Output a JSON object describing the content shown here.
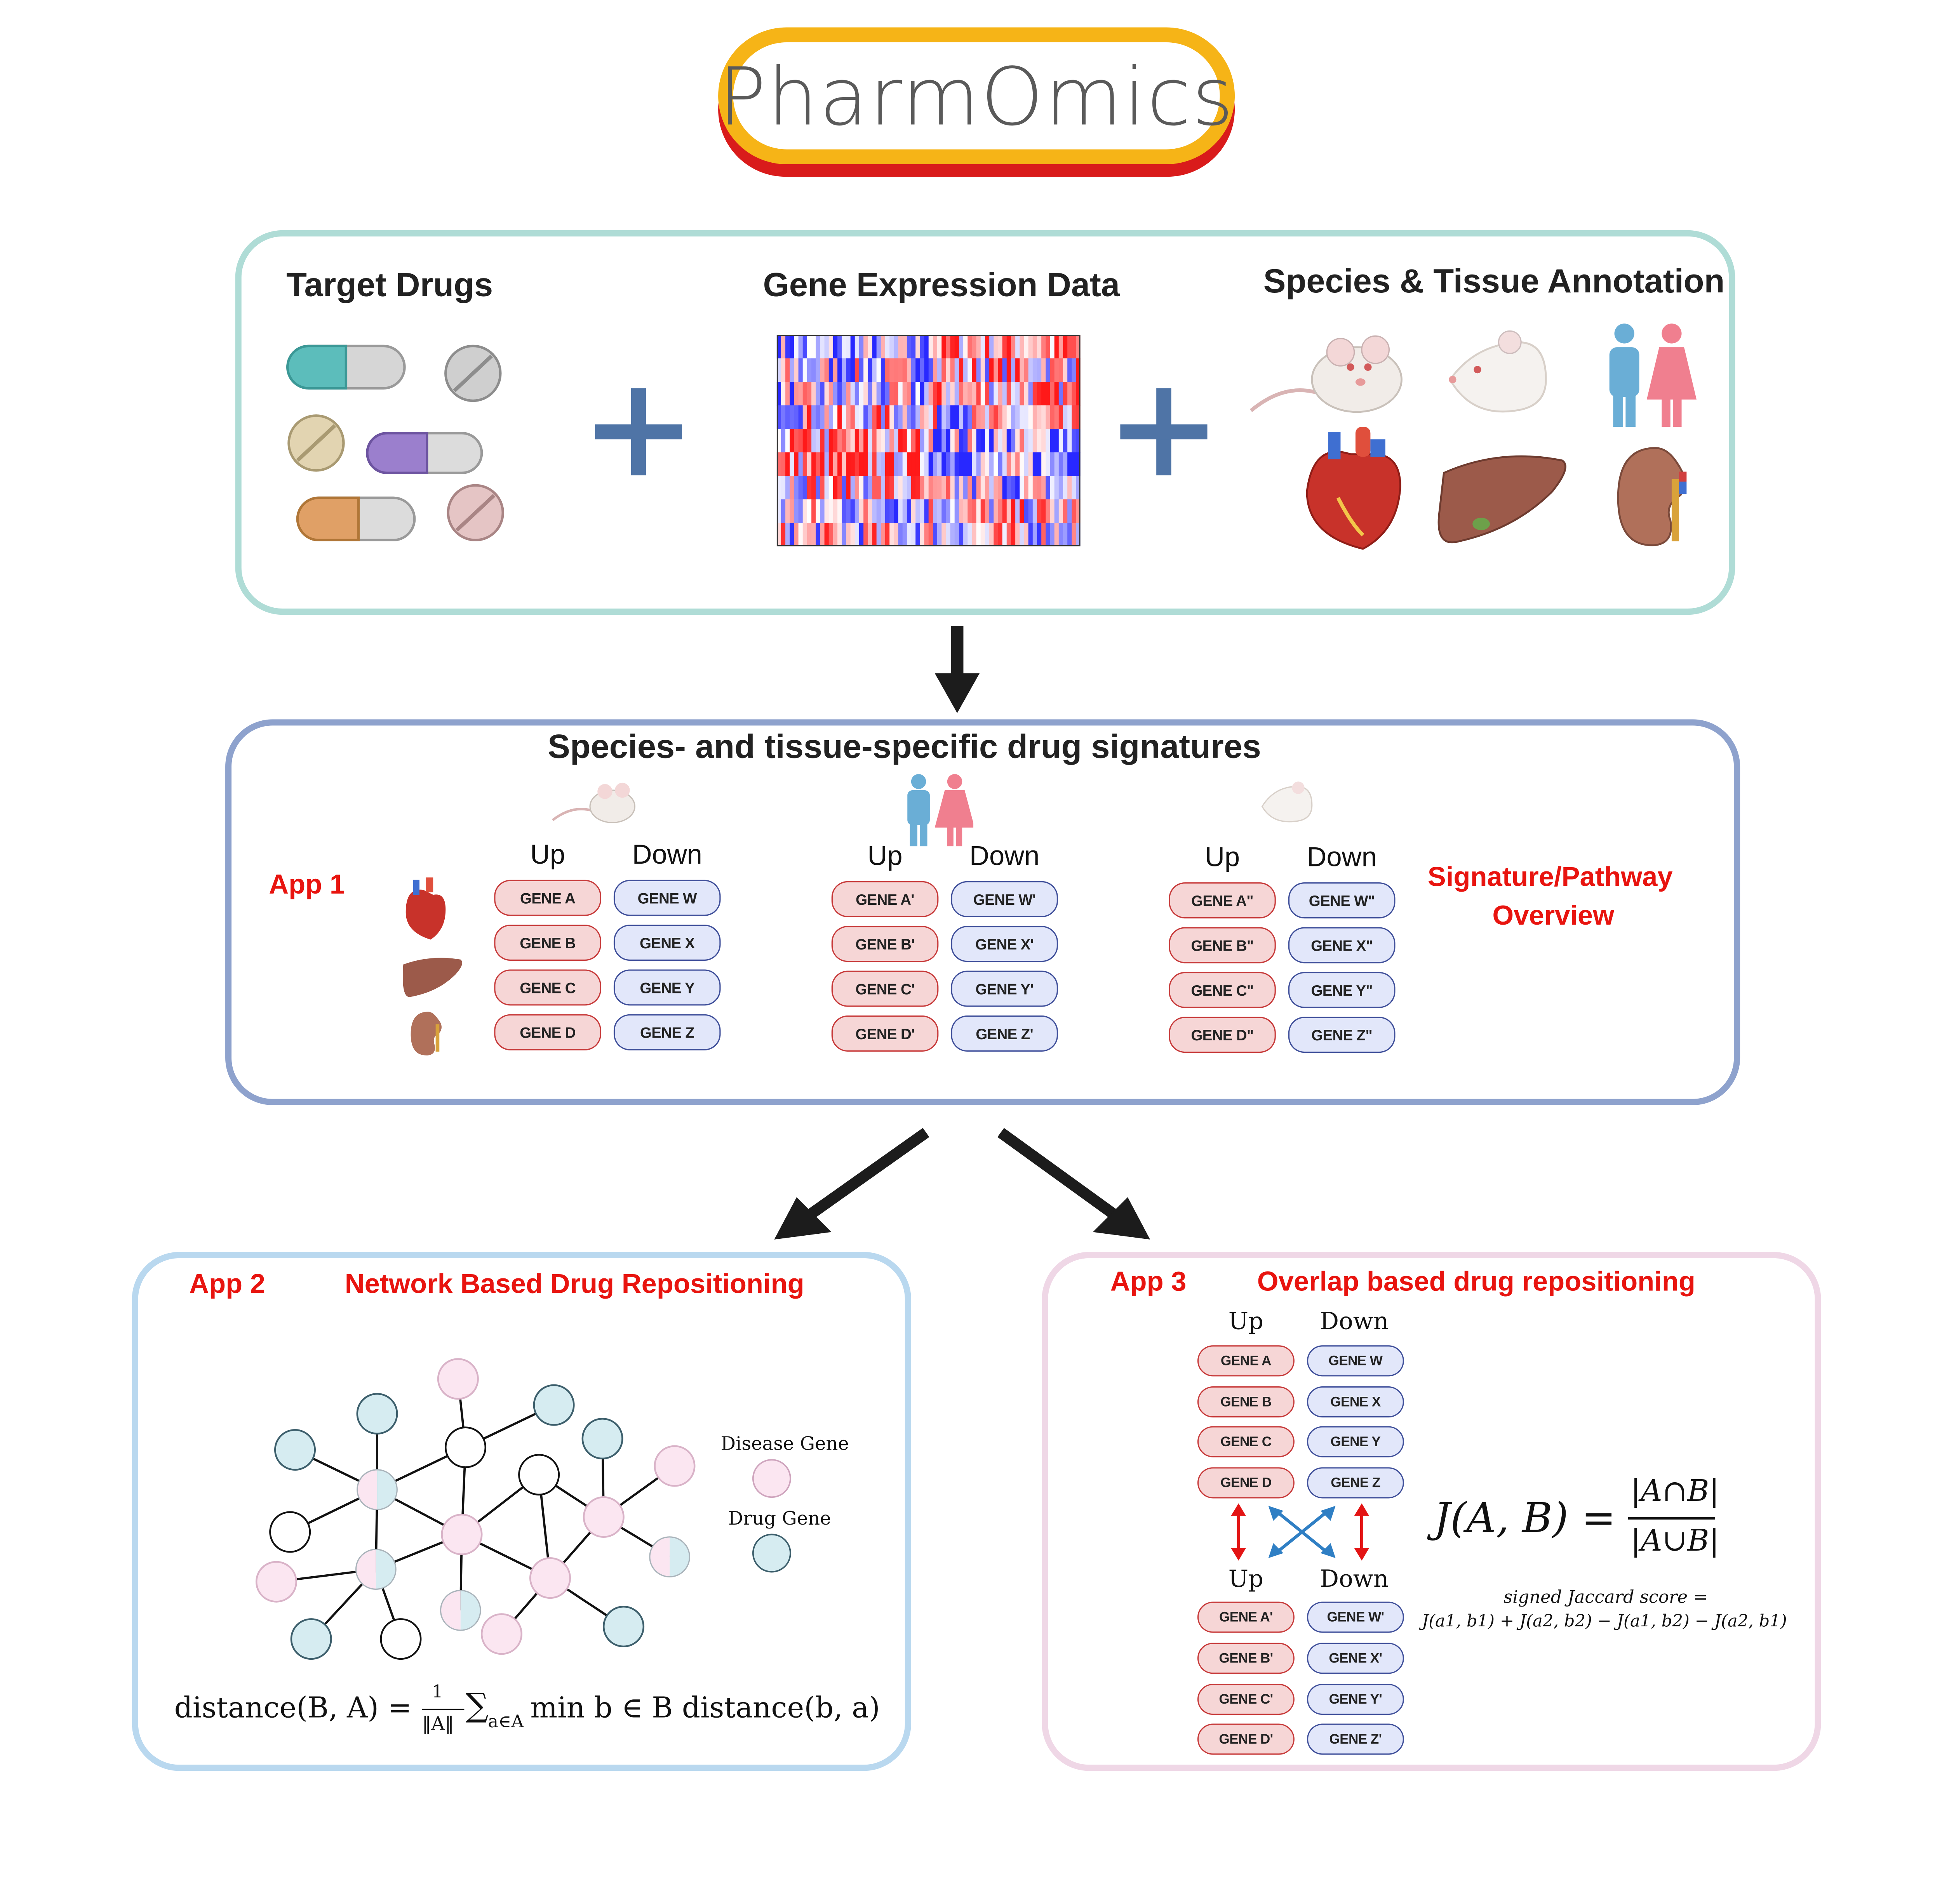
{
  "logo": {
    "text": "PharmOmics"
  },
  "inputs": {
    "target_drugs_title": "Target Drugs",
    "gene_expression_title": "Gene Expression Data",
    "species_tissue_title": "Species & Tissue Annotation"
  },
  "signatures": {
    "title": "Species- and tissue-specific drug signatures",
    "app_label": "App 1",
    "overview_line1": "Signature/Pathway",
    "overview_line2": "Overview",
    "groups": [
      {
        "up_label": "Up",
        "down_label": "Down",
        "up": [
          "GENE A",
          "GENE B",
          "GENE C",
          "GENE D"
        ],
        "down": [
          "GENE W",
          "GENE X",
          "GENE Y",
          "GENE Z"
        ]
      },
      {
        "up_label": "Up",
        "down_label": "Down",
        "up": [
          "GENE A'",
          "GENE B'",
          "GENE C'",
          "GENE D'"
        ],
        "down": [
          "GENE W'",
          "GENE X'",
          "GENE Y'",
          "GENE Z'"
        ]
      },
      {
        "up_label": "Up",
        "down_label": "Down",
        "up": [
          "GENE A\"",
          "GENE B\"",
          "GENE C\"",
          "GENE D\""
        ],
        "down": [
          "GENE W\"",
          "GENE X\"",
          "GENE Y\"",
          "GENE Z\""
        ]
      }
    ]
  },
  "app2": {
    "app_label": "App 2",
    "title": "Network Based Drug Repositioning",
    "legend_disease": "Disease Gene",
    "legend_drug": "Drug Gene",
    "formula_left": "distance(B, A) = ",
    "formula_frac_num": "1",
    "formula_frac_den": "‖A‖",
    "formula_sum": "∑",
    "formula_sub": "a∈A",
    "formula_right": " min b ∈ B distance(b, a)"
  },
  "app3": {
    "app_label": "App 3",
    "title": "Overlap based drug repositioning",
    "top": {
      "up_label": "Up",
      "down_label": "Down",
      "up": [
        "GENE A",
        "GENE B",
        "GENE C",
        "GENE D"
      ],
      "down": [
        "GENE W",
        "GENE X",
        "GENE Y",
        "GENE Z"
      ]
    },
    "bottom": {
      "up_label": "Up",
      "down_label": "Down",
      "up": [
        "GENE A'",
        "GENE B'",
        "GENE C'",
        "GENE D'"
      ],
      "down": [
        "GENE W'",
        "GENE X'",
        "GENE Y'",
        "GENE Z'"
      ]
    },
    "jaccard_lhs": "J(A, B) = ",
    "jaccard_num": "|A∩B|",
    "jaccard_den": "|A∪B|",
    "signed_line1": "signed Jaccard score =",
    "signed_line2": "J(a1, b1) + J(a2, b2) − J(a1, b2) − J(a2, b1)"
  },
  "colors": {
    "up_fill": "#f6d6d6",
    "up_border": "#c73a3a",
    "down_fill": "#e2e7fa",
    "down_border": "#3f4f9a",
    "disease_node": "#fbe6f1",
    "drug_node": "#d6ecf1",
    "accent_red": "#e8140f",
    "plus_blue": "#4f74a6"
  },
  "icons": [
    "capsule-icon",
    "tablet-icon",
    "mouse-icon",
    "rat-icon",
    "human-icon",
    "heart-icon",
    "liver-icon",
    "kidney-icon",
    "arrow-icon",
    "plus-icon"
  ]
}
